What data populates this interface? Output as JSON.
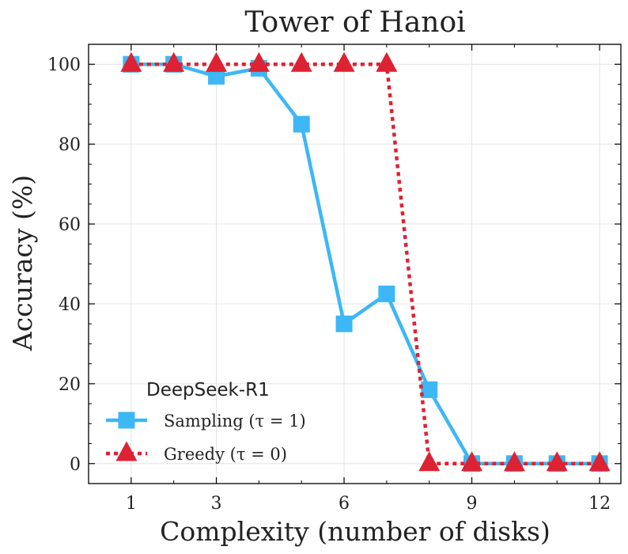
{
  "chart_data": {
    "type": "line",
    "title": "Tower of Hanoi",
    "xlabel": "Complexity (number of disks)",
    "ylabel": "Accuracy (%)",
    "xlim": [
      0.0,
      12.5
    ],
    "ylim": [
      -5,
      105
    ],
    "xticks": [
      1,
      3,
      6,
      9,
      12
    ],
    "yticks": [
      0,
      20,
      40,
      60,
      80,
      100
    ],
    "grid": true,
    "legend": {
      "title": "DeepSeek-R1",
      "position": "lower-left"
    },
    "series": [
      {
        "name": "Sampling (τ = 1)",
        "color": "#3db7f5",
        "marker": "square",
        "line_style": "solid",
        "x": [
          1,
          2,
          3,
          4,
          5,
          6,
          7,
          8,
          9,
          10,
          11,
          12
        ],
        "y": [
          100,
          100,
          97,
          99,
          85,
          35,
          42.5,
          18.5,
          0,
          0,
          0,
          0
        ]
      },
      {
        "name": "Greedy (τ = 0)",
        "color": "#dd2233",
        "marker": "triangle",
        "line_style": "dotted",
        "x": [
          1,
          2,
          3,
          4,
          5,
          6,
          7,
          8,
          9,
          10,
          11,
          12
        ],
        "y": [
          100,
          100,
          100,
          100,
          100,
          100,
          100,
          0,
          0,
          0,
          0,
          0
        ]
      }
    ]
  }
}
